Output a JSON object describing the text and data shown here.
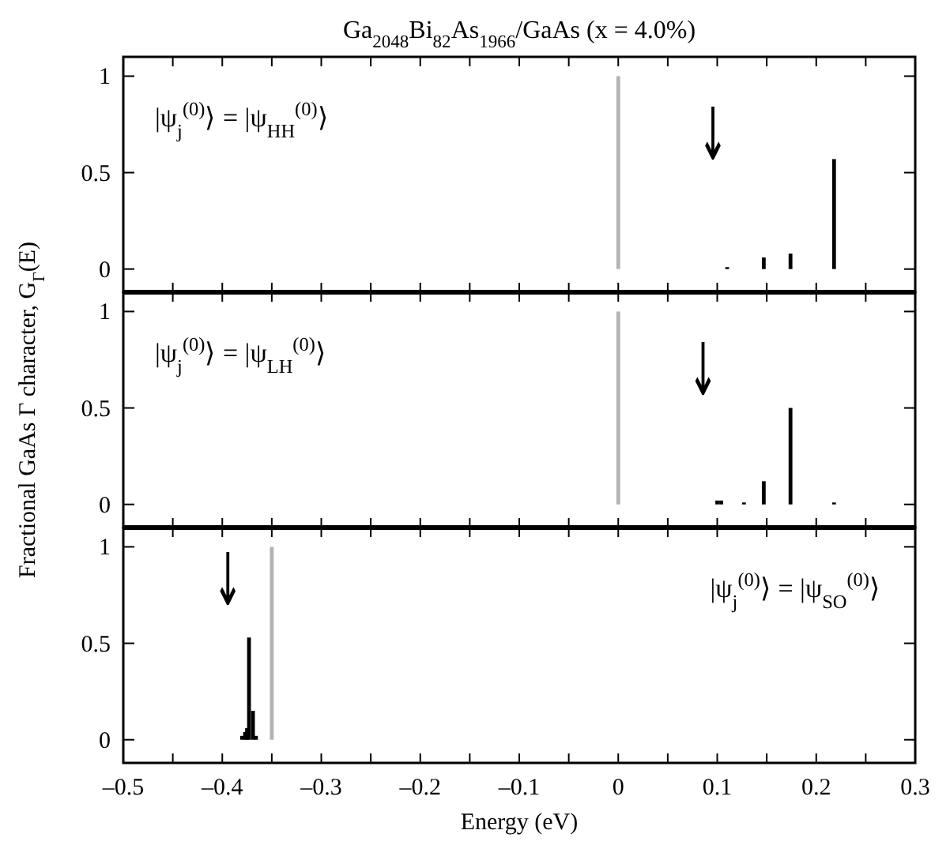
{
  "chart_data": [
    {
      "type": "bar",
      "title": "Ga$_{2048}$Bi$_{82}$As$_{1966}$/GaAs  (x = 4.0%)",
      "xlim": [
        -0.5,
        0.3
      ],
      "ylim": [
        -0.12,
        1.1
      ],
      "yticks": [
        0,
        0.5,
        1
      ],
      "xticks": [
        {
          "value": -0.5,
          "label": null
        },
        {
          "value": -0.45,
          "label": null
        },
        {
          "value": -0.4,
          "label": null
        },
        {
          "value": -0.35,
          "label": null
        },
        {
          "value": -0.3,
          "label": null
        },
        {
          "value": -0.25,
          "label": null
        },
        {
          "value": -0.2,
          "label": null
        },
        {
          "value": -0.15,
          "label": null
        },
        {
          "value": -0.1,
          "label": null
        },
        {
          "value": -0.05,
          "label": null
        },
        {
          "value": 0,
          "label": null
        },
        {
          "value": 0.05,
          "label": null
        },
        {
          "value": 0.1,
          "label": null
        },
        {
          "value": 0.15,
          "label": null
        },
        {
          "value": 0.2,
          "label": null
        },
        {
          "value": 0.25,
          "label": null
        },
        {
          "value": 0.3,
          "label": null
        }
      ],
      "tick_labels": "y",
      "annotations": [
        "|ψ$_{j}$$^{(0)}$⟩ = |ψ$_{HH}$$^{(0)}$⟩",
        "↓"
      ],
      "series": [
        {
          "color": "#000000",
          "x": [
            0.11,
            0.147,
            0.174,
            0.218
          ],
          "values": [
            0.01,
            0.06,
            0.08,
            0.57
          ]
        },
        {
          "color": "#b3b3b3",
          "x": [
            0
          ],
          "values": [
            1
          ]
        }
      ]
    },
    {
      "type": "bar",
      "ylabel": "Fractional GaAs Γ character, G$_{Γ}$(E)",
      "xlim": [
        -0.5,
        0.3
      ],
      "ylim": [
        -0.12,
        1.1
      ],
      "yticks": [
        0,
        0.5,
        1
      ],
      "xticks": [
        {
          "value": -0.5,
          "label": null
        },
        {
          "value": -0.45,
          "label": null
        },
        {
          "value": -0.4,
          "label": null
        },
        {
          "value": -0.35,
          "label": null
        },
        {
          "value": -0.3,
          "label": null
        },
        {
          "value": -0.25,
          "label": null
        },
        {
          "value": -0.2,
          "label": null
        },
        {
          "value": -0.15,
          "label": null
        },
        {
          "value": -0.1,
          "label": null
        },
        {
          "value": -0.05,
          "label": null
        },
        {
          "value": 0,
          "label": null
        },
        {
          "value": 0.05,
          "label": null
        },
        {
          "value": 0.1,
          "label": null
        },
        {
          "value": 0.15,
          "label": null
        },
        {
          "value": 0.2,
          "label": null
        },
        {
          "value": 0.25,
          "label": null
        },
        {
          "value": 0.3,
          "label": null
        }
      ],
      "tick_labels": "y",
      "annotations": [
        "|ψ$_{j}$$^{(0)}$⟩ = |ψ$_{LH}$$^{(0)}$⟩",
        "↓"
      ],
      "series": [
        {
          "color": "#000000",
          "x": [
            0.1,
            0.104,
            0.127,
            0.147,
            0.174,
            0.218
          ],
          "values": [
            0.02,
            0.02,
            0.01,
            0.12,
            0.5,
            0.01
          ]
        },
        {
          "color": "#b3b3b3",
          "x": [
            0
          ],
          "values": [
            1
          ]
        }
      ]
    },
    {
      "type": "bar",
      "xlabel": "Energy (eV)",
      "xlim": [
        -0.5,
        0.3
      ],
      "ylim": [
        -0.12,
        1.1
      ],
      "yticks": [
        0,
        0.5,
        1
      ],
      "xticks": [
        {
          "value": -0.5,
          "label": "–0.5"
        },
        {
          "value": -0.45,
          "label": null
        },
        {
          "value": -0.4,
          "label": "–0.4"
        },
        {
          "value": -0.35,
          "label": null
        },
        {
          "value": -0.3,
          "label": "–0.3"
        },
        {
          "value": -0.25,
          "label": null
        },
        {
          "value": -0.2,
          "label": "–0.2"
        },
        {
          "value": -0.15,
          "label": null
        },
        {
          "value": -0.1,
          "label": "–0.1"
        },
        {
          "value": -0.05,
          "label": null
        },
        {
          "value": 0,
          "label": "0"
        },
        {
          "value": 0.05,
          "label": null
        },
        {
          "value": 0.1,
          "label": "0.1"
        },
        {
          "value": 0.15,
          "label": null
        },
        {
          "value": 0.2,
          "label": "0.2"
        },
        {
          "value": 0.25,
          "label": null
        },
        {
          "value": 0.3,
          "label": "0.3"
        }
      ],
      "annotations": [
        "|ψ$_{j}$$^{(0)}$⟩ = |ψ$_{SO}$$^{(0)}$⟩",
        "↓"
      ],
      "series": [
        {
          "color": "#000000",
          "x": [
            -0.38,
            -0.377,
            -0.375,
            -0.373,
            -0.369,
            -0.366
          ],
          "values": [
            0.02,
            0.04,
            0.06,
            0.53,
            0.15,
            0.02
          ]
        },
        {
          "color": "#b3b3b3",
          "x": [
            -0.35
          ],
          "values": [
            1
          ]
        }
      ]
    }
  ]
}
